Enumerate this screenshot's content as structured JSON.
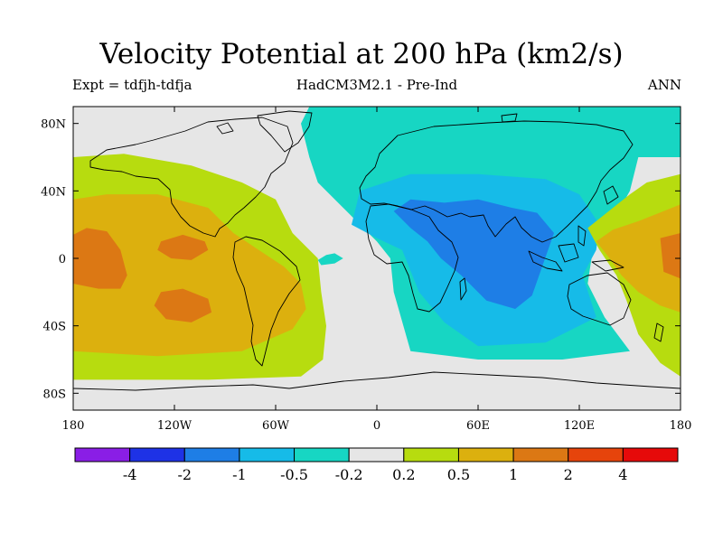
{
  "title": "Velocity Potential at 200 hPa (km2/s)",
  "subtitle_left": "Expt = tdfjh-tdfja",
  "subtitle_center": "HadCM3M2.1 - Pre-Ind",
  "subtitle_right": "ANN",
  "colors": {
    "purple": "#8a1ee6",
    "dark_blue": "#1e32e6",
    "blue": "#1e7ee6",
    "light_blue": "#16bbe8",
    "cyan": "#17d6c3",
    "grey": "#e6e6e6",
    "yellow_green": "#b7dc0f",
    "gold": "#dcb00e",
    "orange": "#dc7814",
    "red_orange": "#e6440c",
    "red": "#e60a0a"
  },
  "chart_data": {
    "type": "contour-map",
    "x_range": [
      -180,
      180
    ],
    "y_range": [
      -90,
      90
    ],
    "x_ticks": [
      {
        "value": -180,
        "label": "180"
      },
      {
        "value": -120,
        "label": "120W"
      },
      {
        "value": -60,
        "label": "60W"
      },
      {
        "value": 0,
        "label": "0"
      },
      {
        "value": 60,
        "label": "60E"
      },
      {
        "value": 120,
        "label": "120E"
      },
      {
        "value": 180,
        "label": "180"
      }
    ],
    "y_ticks": [
      {
        "value": 80,
        "label": "80N"
      },
      {
        "value": 40,
        "label": "40N"
      },
      {
        "value": 0,
        "label": "0"
      },
      {
        "value": -40,
        "label": "40S"
      },
      {
        "value": -80,
        "label": "80S"
      }
    ],
    "colorbar": {
      "colors": [
        "purple",
        "dark_blue",
        "blue",
        "light_blue",
        "cyan",
        "grey",
        "yellow_green",
        "gold",
        "orange",
        "red_orange",
        "red"
      ],
      "levels": [
        "-4",
        "-2",
        "-1",
        "-0.5",
        "-0.2",
        "0.2",
        "0.5",
        "1",
        "2",
        "4"
      ]
    },
    "regions": [
      {
        "color": "cyan",
        "points": [
          [
            -40,
            90
          ],
          [
            180,
            90
          ],
          [
            180,
            60
          ],
          [
            155,
            60
          ],
          [
            150,
            40
          ],
          [
            140,
            22
          ],
          [
            128,
            5
          ],
          [
            125,
            -15
          ],
          [
            135,
            -35
          ],
          [
            150,
            -55
          ],
          [
            110,
            -60
          ],
          [
            60,
            -60
          ],
          [
            20,
            -55
          ],
          [
            10,
            -20
          ],
          [
            8,
            0
          ],
          [
            0,
            10
          ],
          [
            -20,
            30
          ],
          [
            -35,
            45
          ],
          [
            -40,
            60
          ],
          [
            -45,
            80
          ]
        ]
      },
      {
        "color": "light_blue",
        "points": [
          [
            -15,
            20
          ],
          [
            -10,
            40
          ],
          [
            20,
            50
          ],
          [
            60,
            50
          ],
          [
            100,
            47
          ],
          [
            120,
            38
          ],
          [
            132,
            20
          ],
          [
            130,
            5
          ],
          [
            122,
            -10
          ],
          [
            130,
            -35
          ],
          [
            100,
            -50
          ],
          [
            60,
            -52
          ],
          [
            40,
            -38
          ],
          [
            25,
            -20
          ],
          [
            15,
            5
          ],
          [
            0,
            12
          ]
        ]
      },
      {
        "color": "blue",
        "points": [
          [
            10,
            28
          ],
          [
            20,
            35
          ],
          [
            40,
            33
          ],
          [
            60,
            35
          ],
          [
            80,
            30
          ],
          [
            95,
            27
          ],
          [
            105,
            15
          ],
          [
            98,
            -5
          ],
          [
            92,
            -22
          ],
          [
            82,
            -30
          ],
          [
            65,
            -25
          ],
          [
            50,
            -10
          ],
          [
            38,
            0
          ],
          [
            30,
            10
          ],
          [
            20,
            18
          ]
        ]
      },
      {
        "color": "cyan",
        "points": [
          [
            -35,
            -1
          ],
          [
            -30,
            2
          ],
          [
            -25,
            3
          ],
          [
            -20,
            0
          ],
          [
            -25,
            -3
          ],
          [
            -33,
            -4
          ]
        ]
      },
      {
        "color": "yellow_green",
        "points": [
          [
            -180,
            60
          ],
          [
            -150,
            62
          ],
          [
            -110,
            55
          ],
          [
            -80,
            45
          ],
          [
            -60,
            35
          ],
          [
            -50,
            15
          ],
          [
            -35,
            0
          ],
          [
            -33,
            -20
          ],
          [
            -30,
            -40
          ],
          [
            -32,
            -60
          ],
          [
            -45,
            -70
          ],
          [
            -100,
            -72
          ],
          [
            -180,
            -72
          ]
        ]
      },
      {
        "color": "yellow_green",
        "points": [
          [
            125,
            18
          ],
          [
            140,
            30
          ],
          [
            150,
            38
          ],
          [
            160,
            45
          ],
          [
            180,
            50
          ],
          [
            180,
            -70
          ],
          [
            168,
            -62
          ],
          [
            155,
            -45
          ],
          [
            148,
            -25
          ],
          [
            142,
            -10
          ],
          [
            132,
            5
          ]
        ]
      },
      {
        "color": "gold",
        "points": [
          [
            -180,
            35
          ],
          [
            -160,
            38
          ],
          [
            -130,
            38
          ],
          [
            -100,
            30
          ],
          [
            -85,
            15
          ],
          [
            -70,
            5
          ],
          [
            -55,
            -5
          ],
          [
            -45,
            -15
          ],
          [
            -42,
            -30
          ],
          [
            -50,
            -42
          ],
          [
            -80,
            -55
          ],
          [
            -130,
            -58
          ],
          [
            -180,
            -55
          ]
        ]
      },
      {
        "color": "gold",
        "points": [
          [
            130,
            10
          ],
          [
            140,
            17
          ],
          [
            155,
            22
          ],
          [
            170,
            28
          ],
          [
            180,
            32
          ],
          [
            180,
            -32
          ],
          [
            168,
            -28
          ],
          [
            155,
            -20
          ],
          [
            145,
            -10
          ],
          [
            138,
            0
          ]
        ]
      },
      {
        "color": "orange",
        "points": [
          [
            -180,
            14
          ],
          [
            -172,
            18
          ],
          [
            -160,
            16
          ],
          [
            -152,
            5
          ],
          [
            -148,
            -10
          ],
          [
            -152,
            -18
          ],
          [
            -165,
            -18
          ],
          [
            -180,
            -15
          ]
        ]
      },
      {
        "color": "orange",
        "points": [
          [
            -128,
            10
          ],
          [
            -115,
            14
          ],
          [
            -102,
            10
          ],
          [
            -100,
            5
          ],
          [
            -110,
            -1
          ],
          [
            -122,
            0
          ],
          [
            -130,
            5
          ]
        ]
      },
      {
        "color": "orange",
        "points": [
          [
            -128,
            -20
          ],
          [
            -115,
            -18
          ],
          [
            -100,
            -24
          ],
          [
            -98,
            -32
          ],
          [
            -110,
            -38
          ],
          [
            -125,
            -36
          ],
          [
            -132,
            -28
          ]
        ]
      },
      {
        "color": "orange",
        "points": [
          [
            168,
            12
          ],
          [
            180,
            15
          ],
          [
            180,
            -12
          ],
          [
            170,
            -8
          ]
        ]
      }
    ]
  }
}
